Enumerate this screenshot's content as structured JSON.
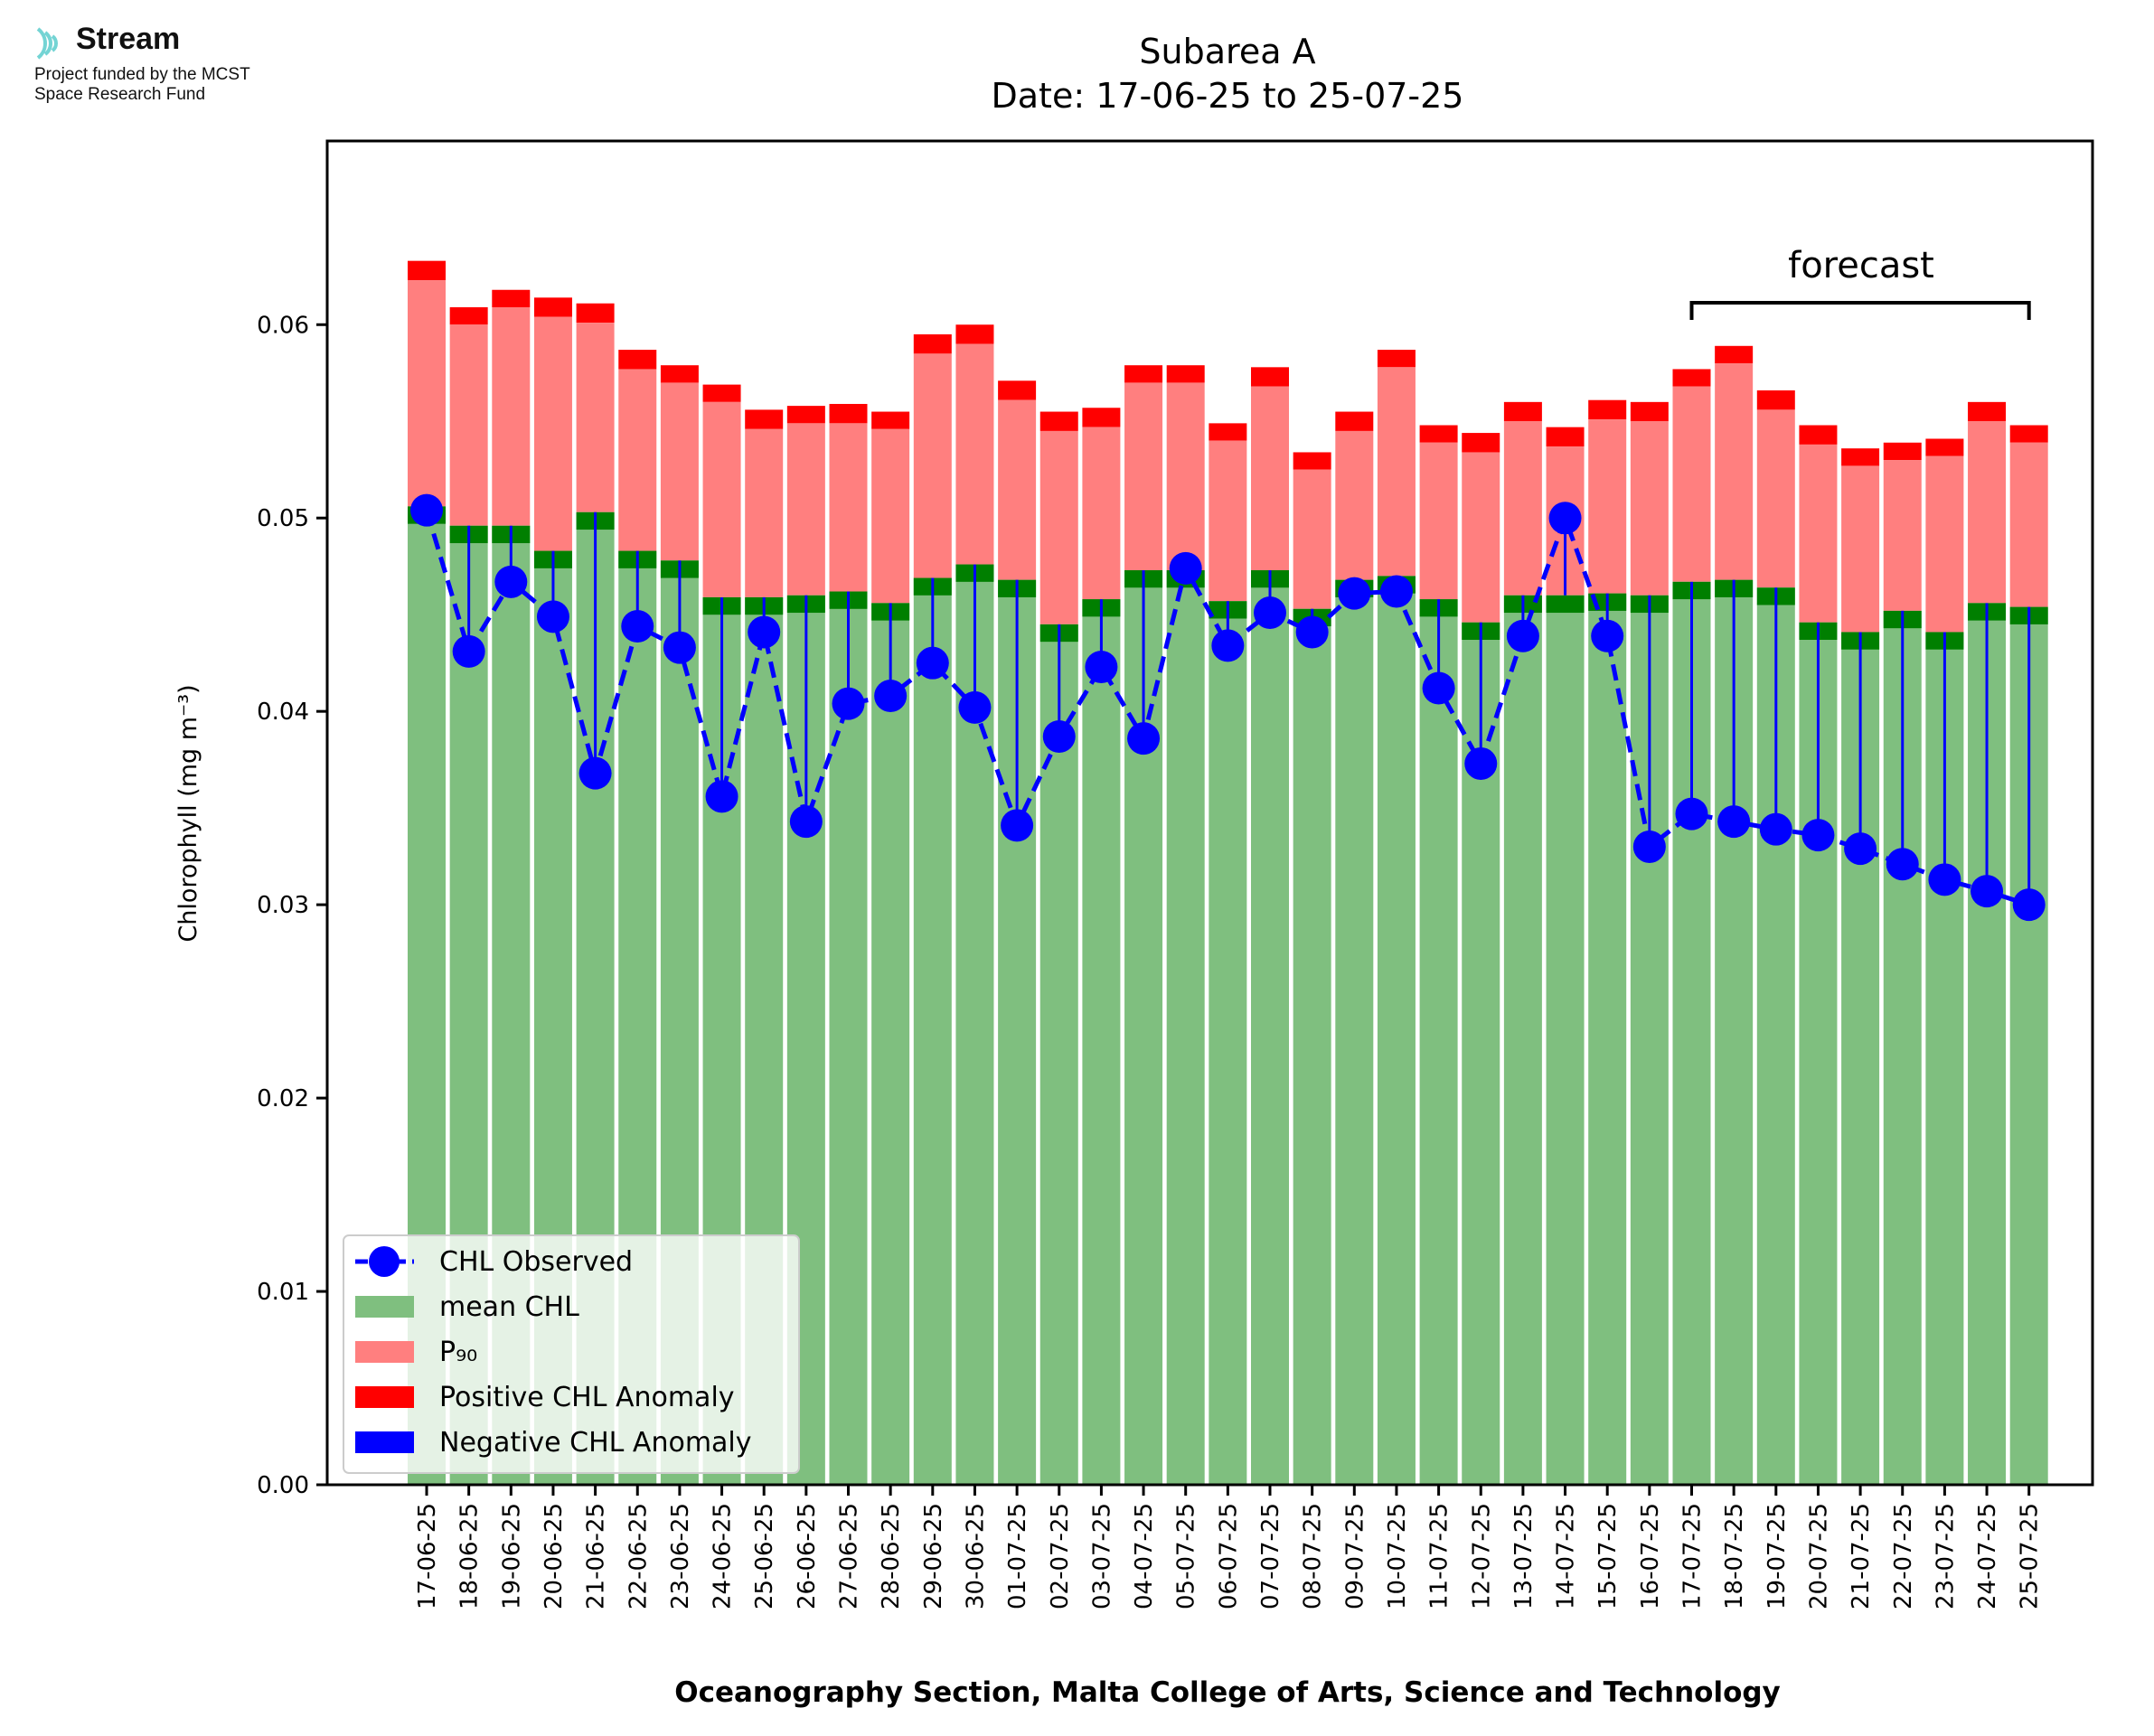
{
  "logo": {
    "brand": "Stream",
    "line1": "Project funded by the MCST",
    "line2": "Space Research Fund",
    "icon": "stream-wave-icon"
  },
  "colors": {
    "mean": "#7fbf7f",
    "mean_band": "#007f00",
    "p90": "#ff7f7f",
    "positive": "#ff0000",
    "negative": "#0000ff",
    "observed": "#0000ff"
  },
  "chart_data": {
    "type": "bar",
    "title": "Subarea A",
    "subtitle": "Date: 17-06-25 to 25-07-25",
    "xlabel": "Oceanography Section, Malta College of Arts, Science and Technology",
    "ylabel": "Chlorophyll (mg m⁻³)",
    "ylim": [
      0,
      0.0695
    ],
    "yticks": [
      "0.00",
      "0.01",
      "0.02",
      "0.03",
      "0.04",
      "0.05",
      "0.06"
    ],
    "annotation": "forecast",
    "forecast_range": [
      "17-07-25",
      "25-07-25"
    ],
    "legend_position": "lower-left",
    "legend": [
      "CHL Observed",
      "mean CHL",
      "P₉₀",
      "Positive CHL Anomaly",
      "Negative CHL Anomaly"
    ],
    "categories": [
      "17-06-25",
      "18-06-25",
      "19-06-25",
      "20-06-25",
      "21-06-25",
      "22-06-25",
      "23-06-25",
      "24-06-25",
      "25-06-25",
      "26-06-25",
      "27-06-25",
      "28-06-25",
      "29-06-25",
      "30-06-25",
      "01-07-25",
      "02-07-25",
      "03-07-25",
      "04-07-25",
      "05-07-25",
      "06-07-25",
      "07-07-25",
      "08-07-25",
      "09-07-25",
      "10-07-25",
      "11-07-25",
      "12-07-25",
      "13-07-25",
      "14-07-25",
      "15-07-25",
      "16-07-25",
      "17-07-25",
      "18-07-25",
      "19-07-25",
      "20-07-25",
      "21-07-25",
      "22-07-25",
      "23-07-25",
      "24-07-25",
      "25-07-25"
    ],
    "series": [
      {
        "name": "mean CHL",
        "values": [
          0.0506,
          0.0496,
          0.0496,
          0.0483,
          0.0503,
          0.0483,
          0.0478,
          0.0459,
          0.0459,
          0.046,
          0.0462,
          0.0456,
          0.0469,
          0.0476,
          0.0468,
          0.0445,
          0.0458,
          0.0473,
          0.0473,
          0.0457,
          0.0473,
          0.0453,
          0.0468,
          0.047,
          0.0458,
          0.0446,
          0.046,
          0.046,
          0.0461,
          0.046,
          0.0467,
          0.0468,
          0.0464,
          0.0446,
          0.0441,
          0.0452,
          0.0441,
          0.0456,
          0.0454
        ]
      },
      {
        "name": "P₉₀",
        "values": [
          0.0623,
          0.06,
          0.0609,
          0.0604,
          0.0601,
          0.0577,
          0.057,
          0.056,
          0.0546,
          0.0549,
          0.0549,
          0.0546,
          0.0585,
          0.059,
          0.0561,
          0.0545,
          0.0547,
          0.057,
          0.057,
          0.054,
          0.0568,
          0.0525,
          0.0545,
          0.0578,
          0.0539,
          0.0534,
          0.055,
          0.0537,
          0.0551,
          0.055,
          0.0568,
          0.058,
          0.0556,
          0.0538,
          0.0527,
          0.053,
          0.0532,
          0.055,
          0.0539
        ]
      },
      {
        "name": "Positive CHL Anomaly",
        "values": [
          0.0633,
          0.0609,
          0.0618,
          0.0614,
          0.0611,
          0.0587,
          0.0579,
          0.0569,
          0.0556,
          0.0558,
          0.0559,
          0.0555,
          0.0595,
          0.06,
          0.0571,
          0.0555,
          0.0557,
          0.0579,
          0.0579,
          0.0549,
          0.0578,
          0.0534,
          0.0555,
          0.0587,
          0.0548,
          0.0544,
          0.056,
          0.0547,
          0.0561,
          0.056,
          0.0577,
          0.0589,
          0.0566,
          0.0548,
          0.0536,
          0.0539,
          0.0541,
          0.056,
          0.0548
        ]
      },
      {
        "name": "CHL Observed",
        "values": [
          0.0504,
          0.0431,
          0.0467,
          0.0449,
          0.0368,
          0.0444,
          0.0433,
          0.0356,
          0.0441,
          0.0343,
          0.0404,
          0.0408,
          0.0425,
          0.0402,
          0.0341,
          0.0387,
          0.0423,
          0.0386,
          0.0474,
          0.0434,
          0.0451,
          0.0441,
          0.0461,
          0.0462,
          0.0412,
          0.0373,
          0.0439,
          0.05,
          0.0439,
          0.033,
          0.0347,
          0.0343,
          0.0339,
          0.0336,
          0.0329,
          0.0321,
          0.0313,
          0.0307,
          0.03
        ]
      }
    ]
  }
}
